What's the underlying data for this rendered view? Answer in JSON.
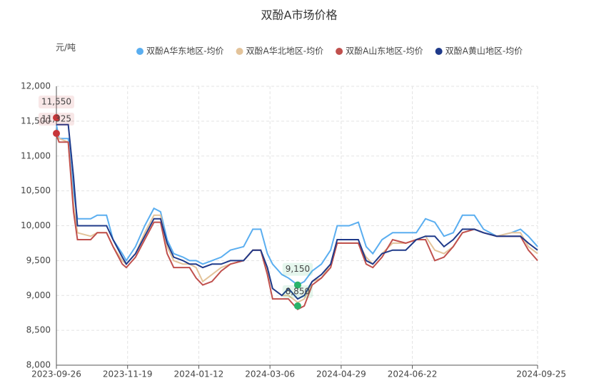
{
  "chart_data": {
    "type": "line",
    "title": "双酚A市场价格",
    "y_axis_label": "元/吨",
    "x": [
      "2023-09-26",
      "2023-09-28",
      "2023-10-05",
      "2023-10-09",
      "2023-10-12",
      "2023-10-22",
      "2023-10-27",
      "2023-11-03",
      "2023-11-08",
      "2023-11-15",
      "2023-11-18",
      "2023-11-25",
      "2023-12-02",
      "2023-12-09",
      "2023-12-14",
      "2023-12-19",
      "2023-12-24",
      "2023-12-31",
      "2024-01-05",
      "2024-01-10",
      "2024-01-15",
      "2024-01-22",
      "2024-01-29",
      "2024-02-05",
      "2024-02-15",
      "2024-02-22",
      "2024-02-28",
      "2024-03-04",
      "2024-03-08",
      "2024-03-15",
      "2024-03-20",
      "2024-03-27",
      "2024-04-01",
      "2024-04-07",
      "2024-04-14",
      "2024-04-21",
      "2024-04-26",
      "2024-05-05",
      "2024-05-12",
      "2024-05-18",
      "2024-05-23",
      "2024-05-30",
      "2024-06-07",
      "2024-06-17",
      "2024-06-25",
      "2024-07-02",
      "2024-07-09",
      "2024-07-16",
      "2024-07-23",
      "2024-07-30",
      "2024-08-08",
      "2024-08-15",
      "2024-08-25",
      "2024-09-05",
      "2024-09-12",
      "2024-09-18",
      "2024-09-25"
    ],
    "series": [
      {
        "name": "双酚A华东地区-均价",
        "color": "#5aaef0",
        "values": [
          11450,
          11250,
          11250,
          10500,
          10100,
          10100,
          10150,
          10150,
          9800,
          9600,
          9500,
          9700,
          10000,
          10250,
          10200,
          9800,
          9600,
          9550,
          9500,
          9500,
          9450,
          9500,
          9550,
          9650,
          9700,
          9950,
          9950,
          9600,
          9450,
          9300,
          9250,
          9150,
          9200,
          9350,
          9450,
          9650,
          10000,
          10000,
          10050,
          9700,
          9600,
          9800,
          9900,
          9900,
          9900,
          10100,
          10050,
          9850,
          9900,
          10150,
          10150,
          9950,
          9850,
          9900,
          9950,
          9850,
          9700
        ]
      },
      {
        "name": "双酚A华北地区-均价",
        "color": "#e3c39a",
        "values": [
          11300,
          11250,
          11200,
          10300,
          9900,
          9850,
          9900,
          9900,
          9700,
          9500,
          9450,
          9600,
          9900,
          10150,
          10150,
          9700,
          9500,
          9450,
          9450,
          9400,
          9200,
          9300,
          9400,
          9450,
          9500,
          9650,
          9650,
          9350,
          9100,
          9000,
          9000,
          8900,
          8950,
          9200,
          9250,
          9450,
          9750,
          9750,
          9750,
          9550,
          9450,
          9600,
          9750,
          9750,
          9800,
          9850,
          9650,
          9600,
          9700,
          9900,
          9950,
          9900,
          9850,
          9900,
          9900,
          9700,
          9600
        ]
      },
      {
        "name": "双酚A山东地区-均价",
        "color": "#c0504d",
        "values": [
          11300,
          11200,
          11200,
          10200,
          9800,
          9800,
          9900,
          9900,
          9700,
          9450,
          9400,
          9550,
          9800,
          10050,
          10050,
          9600,
          9400,
          9400,
          9400,
          9250,
          9150,
          9200,
          9350,
          9450,
          9500,
          9650,
          9650,
          9300,
          8950,
          8950,
          8950,
          8800,
          8850,
          9150,
          9250,
          9400,
          9750,
          9750,
          9750,
          9450,
          9400,
          9550,
          9800,
          9750,
          9800,
          9800,
          9500,
          9550,
          9700,
          9900,
          9950,
          9900,
          9850,
          9850,
          9850,
          9650,
          9500
        ]
      },
      {
        "name": "双酚A黄山地区-均价",
        "color": "#1f3a8a",
        "values": [
          11450,
          11450,
          11450,
          10700,
          10000,
          10000,
          10000,
          10000,
          9800,
          9550,
          9450,
          9600,
          9850,
          10100,
          10100,
          9750,
          9550,
          9500,
          9450,
          9450,
          9400,
          9450,
          9450,
          9500,
          9500,
          9650,
          9650,
          9400,
          9100,
          9000,
          9100,
          8950,
          9000,
          9200,
          9300,
          9450,
          9800,
          9800,
          9800,
          9500,
          9450,
          9600,
          9650,
          9650,
          9800,
          9850,
          9850,
          9700,
          9800,
          9950,
          9950,
          9900,
          9850,
          9850,
          9850,
          9750,
          9650
        ]
      }
    ],
    "ylim": [
      8000,
      12000
    ],
    "yticks": [
      {
        "value": 8000,
        "label": "8,000"
      },
      {
        "value": 8500,
        "label": "8,500"
      },
      {
        "value": 9000,
        "label": "9,000"
      },
      {
        "value": 9500,
        "label": "9,500"
      },
      {
        "value": 10000,
        "label": "10,000"
      },
      {
        "value": 10500,
        "label": "10,500"
      },
      {
        "value": 11000,
        "label": "11,000"
      },
      {
        "value": 11500,
        "label": "11,500"
      },
      {
        "value": 12000,
        "label": "12,000"
      }
    ],
    "xlim": [
      "2023-09-26",
      "2024-09-25"
    ],
    "xticks": [
      "2023-09-26",
      "2023-11-19",
      "2024-01-12",
      "2024-03-06",
      "2024-04-29",
      "2024-06-22",
      "2024-09-25"
    ],
    "markers": [
      {
        "x": "2023-09-26",
        "value": 11550,
        "label": "11,550",
        "color": "#c8363a"
      },
      {
        "x": "2023-09-26",
        "value": 11325,
        "label": "11,325",
        "color": "#c8363a"
      },
      {
        "x": "2024-03-27",
        "value": 9150,
        "label": "9,150",
        "color": "#2ab36a"
      },
      {
        "x": "2024-03-27",
        "value": 8850,
        "label": "8,850",
        "color": "#2ab36a"
      }
    ],
    "grid": true
  }
}
